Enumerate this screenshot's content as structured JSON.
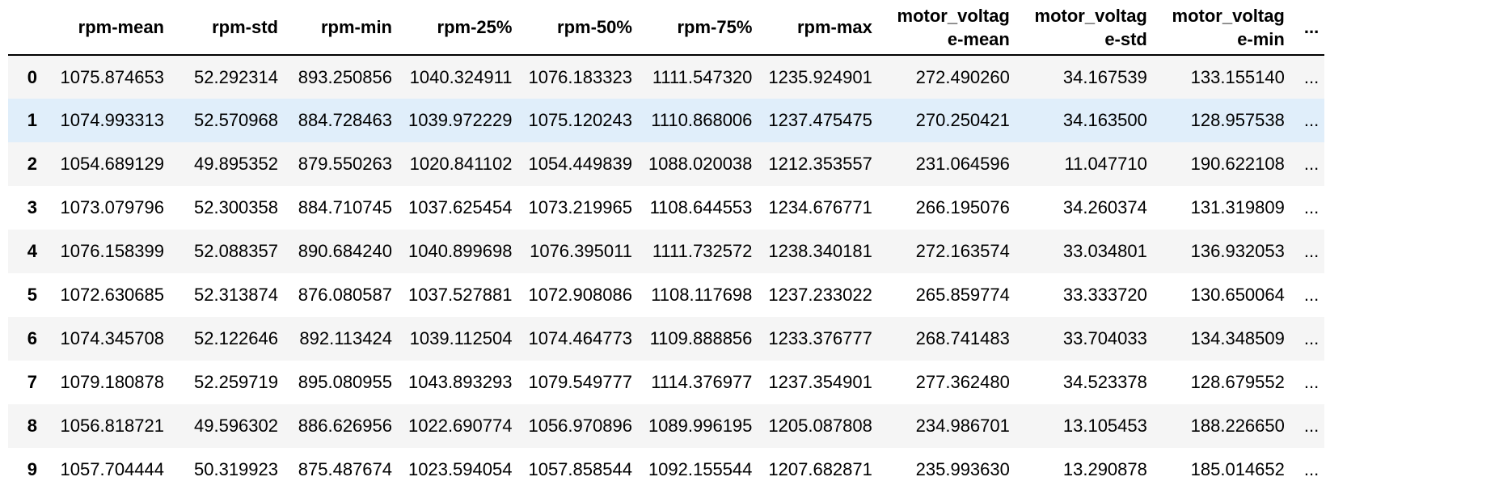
{
  "dataframe": {
    "columns": [
      "rpm-mean",
      "rpm-std",
      "rpm-min",
      "rpm-25%",
      "rpm-50%",
      "rpm-75%",
      "rpm-max",
      "motor_voltage-mean",
      "motor_voltage-std",
      "motor_voltage-min",
      "..."
    ],
    "rows": [
      {
        "index": "0",
        "cells": [
          "1075.874653",
          "52.292314",
          "893.250856",
          "1040.324911",
          "1076.183323",
          "1111.547320",
          "1235.924901",
          "272.490260",
          "34.167539",
          "133.155140",
          "..."
        ]
      },
      {
        "index": "1",
        "cells": [
          "1074.993313",
          "52.570968",
          "884.728463",
          "1039.972229",
          "1075.120243",
          "1110.868006",
          "1237.475475",
          "270.250421",
          "34.163500",
          "128.957538",
          "..."
        ]
      },
      {
        "index": "2",
        "cells": [
          "1054.689129",
          "49.895352",
          "879.550263",
          "1020.841102",
          "1054.449839",
          "1088.020038",
          "1212.353557",
          "231.064596",
          "11.047710",
          "190.622108",
          "..."
        ]
      },
      {
        "index": "3",
        "cells": [
          "1073.079796",
          "52.300358",
          "884.710745",
          "1037.625454",
          "1073.219965",
          "1108.644553",
          "1234.676771",
          "266.195076",
          "34.260374",
          "131.319809",
          "..."
        ]
      },
      {
        "index": "4",
        "cells": [
          "1076.158399",
          "52.088357",
          "890.684240",
          "1040.899698",
          "1076.395011",
          "1111.732572",
          "1238.340181",
          "272.163574",
          "33.034801",
          "136.932053",
          "..."
        ]
      },
      {
        "index": "5",
        "cells": [
          "1072.630685",
          "52.313874",
          "876.080587",
          "1037.527881",
          "1072.908086",
          "1108.117698",
          "1237.233022",
          "265.859774",
          "33.333720",
          "130.650064",
          "..."
        ]
      },
      {
        "index": "6",
        "cells": [
          "1074.345708",
          "52.122646",
          "892.113424",
          "1039.112504",
          "1074.464773",
          "1109.888856",
          "1233.376777",
          "268.741483",
          "33.704033",
          "134.348509",
          "..."
        ]
      },
      {
        "index": "7",
        "cells": [
          "1079.180878",
          "52.259719",
          "895.080955",
          "1043.893293",
          "1079.549777",
          "1114.376977",
          "1237.354901",
          "277.362480",
          "34.523378",
          "128.679552",
          "..."
        ]
      },
      {
        "index": "8",
        "cells": [
          "1056.818721",
          "49.596302",
          "886.626956",
          "1022.690774",
          "1056.970896",
          "1089.996195",
          "1205.087808",
          "234.986701",
          "13.105453",
          "188.226650",
          "..."
        ]
      },
      {
        "index": "9",
        "cells": [
          "1057.704444",
          "50.319923",
          "875.487674",
          "1023.594054",
          "1057.858544",
          "1092.155544",
          "1207.682871",
          "235.993630",
          "13.290878",
          "185.014652",
          "..."
        ]
      }
    ],
    "hovered_row": 1,
    "colors": {
      "row_stripe": "#f5f5f5",
      "row_hover": "#e0eefa",
      "header_rule": "#000000"
    }
  }
}
